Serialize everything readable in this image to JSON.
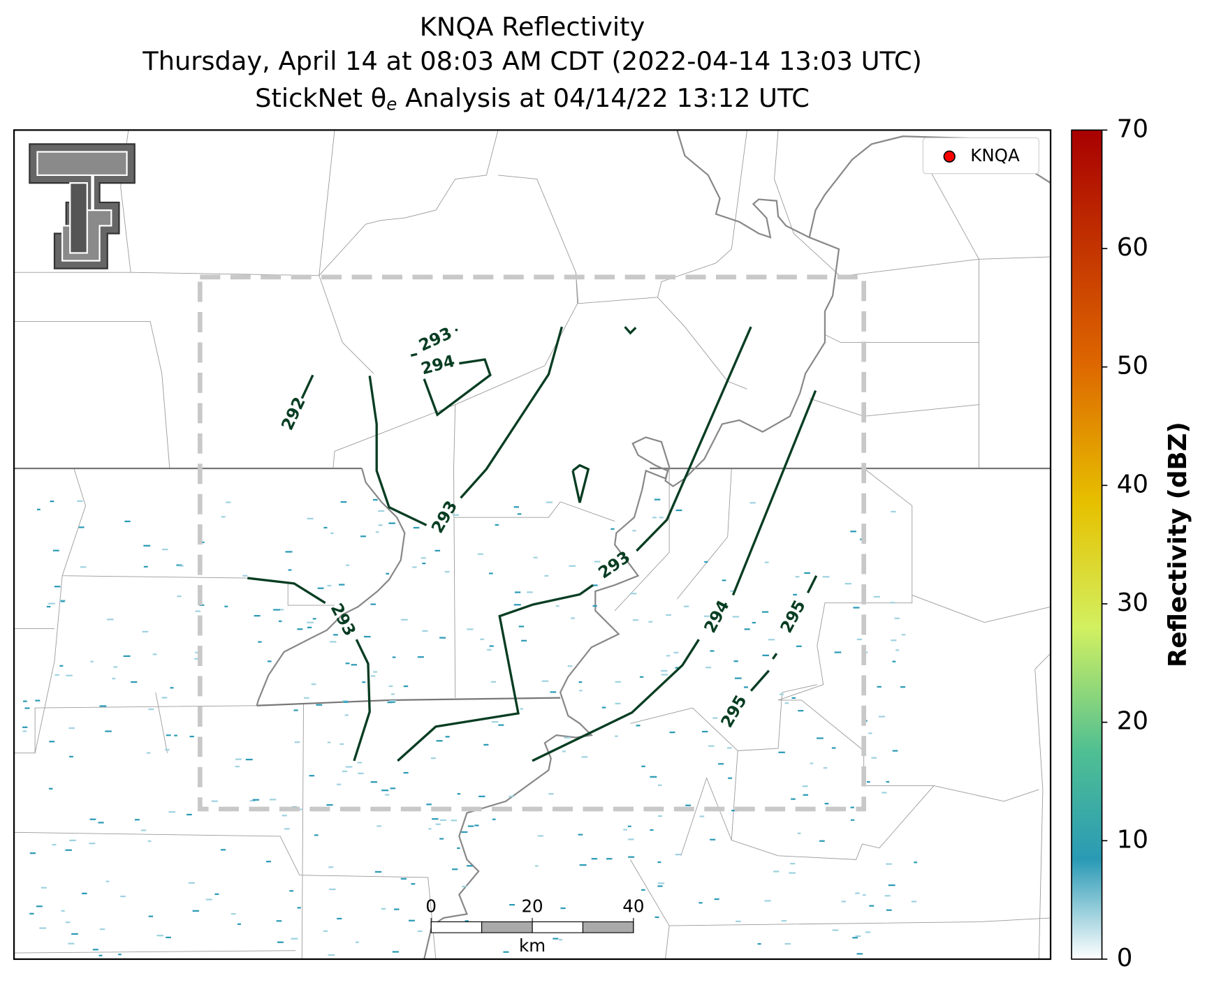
{
  "title": {
    "line1": "KNQA Reflectivity",
    "line2": "Thursday, April 14 at 08:03 AM CDT (2022-04-14 13:03 UTC)",
    "line3_pre": "StickNet θ",
    "line3_sub": "e",
    "line3_post": " Analysis at 04/14/22 13:12 UTC"
  },
  "legend": {
    "label": "KNQA",
    "color": "#ff0000"
  },
  "colorbar": {
    "label": "Reflectivity (dBZ)",
    "lim": [
      0,
      70
    ],
    "ticks": [
      0,
      10,
      20,
      30,
      40,
      50,
      60,
      70
    ]
  },
  "contour_labels": [
    292,
    293,
    293,
    293,
    293,
    294,
    294,
    295,
    295
  ],
  "scale_bar": {
    "ticks": [
      0,
      20,
      40
    ],
    "unit": "km"
  }
}
